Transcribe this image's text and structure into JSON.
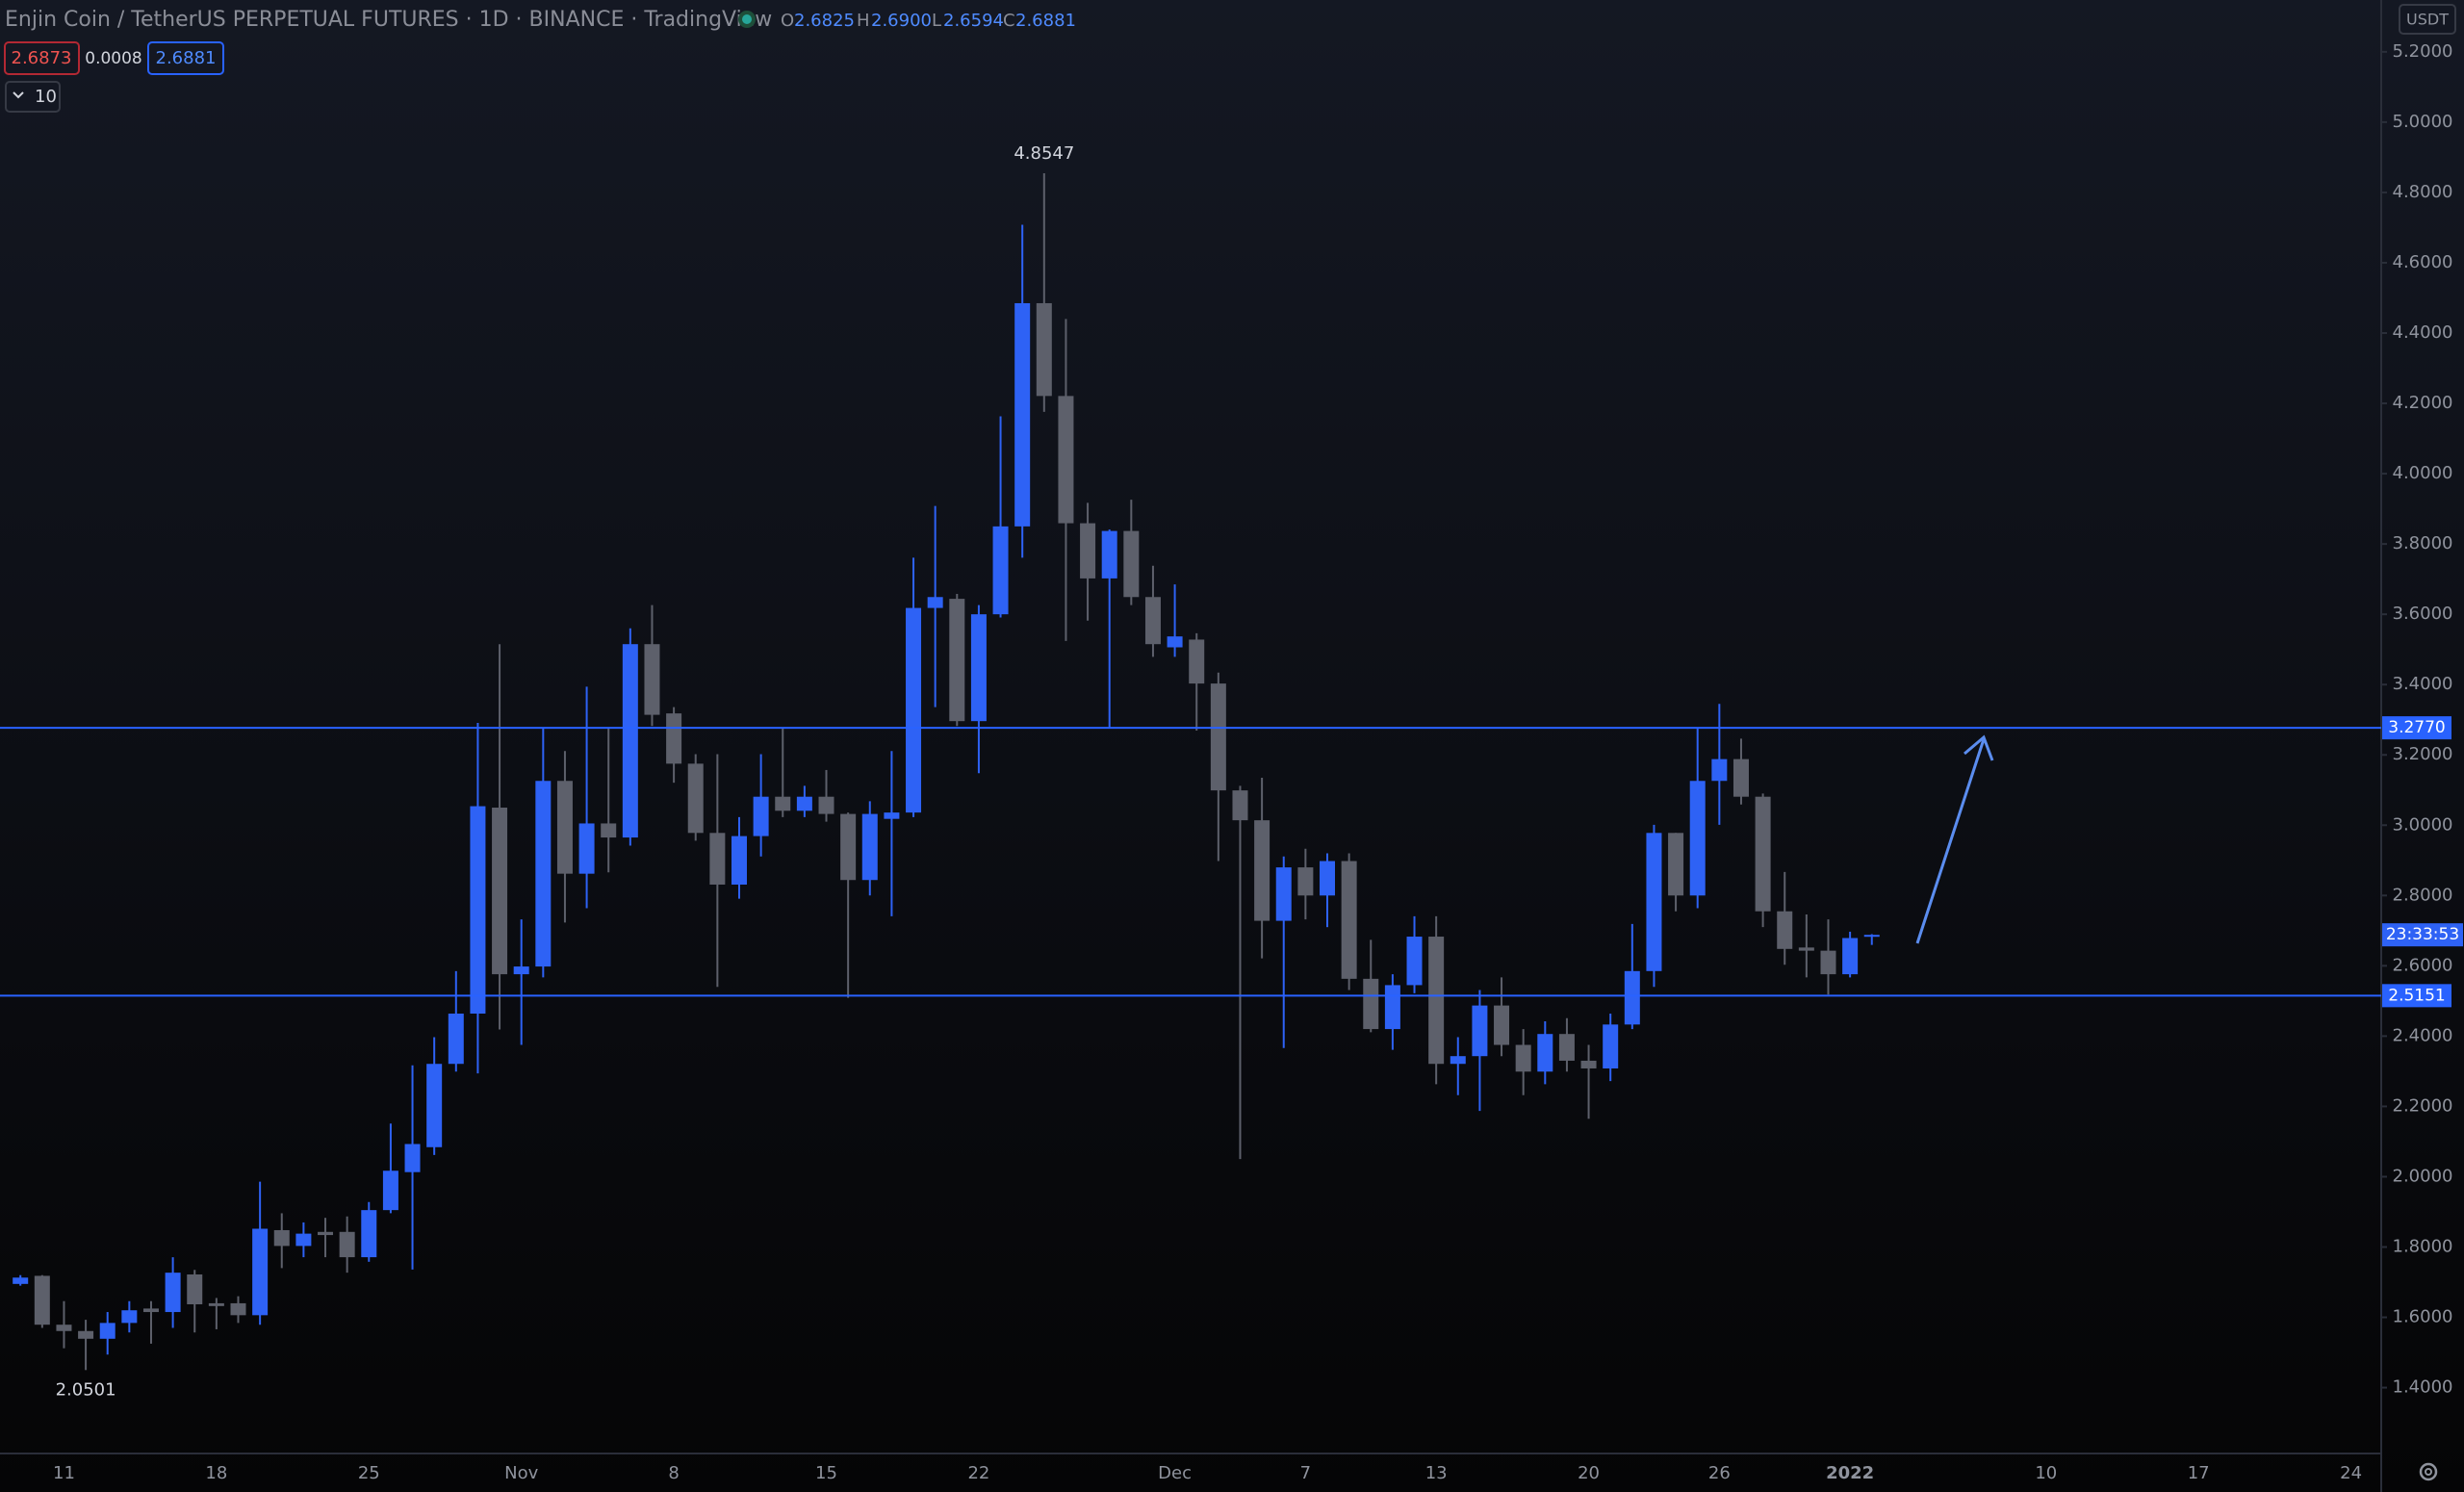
{
  "chart_data": {
    "type": "candlestick",
    "title": "Enjin Coin / TetherUS PERPETUAL FUTURES · 1D · BINANCE · TradingView",
    "ohlc_legend": [
      {
        "key": "O",
        "value": "2.6825"
      },
      {
        "key": "H",
        "value": "2.6900"
      },
      {
        "key": "L",
        "value": "2.6594"
      },
      {
        "key": "C",
        "value": "2.6881"
      }
    ],
    "quote": {
      "sell": "2.6873",
      "spread": "0.0008",
      "buy": "2.6881"
    },
    "indicator_count": "10",
    "currency": "USDT",
    "countdown": "23:33:53",
    "high_label": "4.8547",
    "low_label": "2.0501",
    "up_color": "#2e62f5",
    "down_color": "#5d606b",
    "categories": [
      null,
      null,
      "11",
      null,
      null,
      null,
      null,
      null,
      null,
      "18",
      null,
      null,
      null,
      null,
      null,
      null,
      "25",
      null,
      null,
      null,
      null,
      null,
      null,
      "Nov",
      null,
      null,
      null,
      null,
      null,
      null,
      "8",
      null,
      null,
      null,
      null,
      null,
      null,
      "15",
      null,
      null,
      null,
      null,
      null,
      null,
      "22",
      null,
      null,
      null,
      null,
      null,
      null,
      null,
      null,
      "Dec",
      null,
      null,
      null,
      null,
      null,
      "7",
      null,
      null,
      null,
      null,
      null,
      "13",
      null,
      null,
      null,
      null,
      null,
      null,
      "20",
      null,
      null,
      null,
      null,
      null,
      "26",
      null,
      null,
      null,
      null,
      null,
      "2022",
      null,
      null,
      null,
      null,
      null,
      null,
      null,
      null,
      "10",
      null,
      null,
      null,
      null,
      null,
      null,
      "17",
      null,
      null,
      null,
      null,
      null,
      null,
      "24"
    ],
    "open": [
      1.695,
      1.718,
      1.579,
      1.561,
      1.539,
      1.584,
      1.625,
      1.615,
      1.722,
      1.64,
      1.64,
      1.606,
      1.848,
      1.803,
      1.843,
      1.843,
      1.771,
      1.905,
      2.013,
      2.084,
      2.321,
      2.464,
      3.05,
      2.576,
      2.598,
      3.126,
      2.862,
      3.005,
      2.965,
      3.515,
      3.318,
      3.175,
      2.978,
      2.831,
      2.969,
      3.081,
      3.041,
      3.081,
      3.032,
      2.844,
      3.018,
      3.036,
      3.618,
      3.644,
      3.296,
      3.6,
      3.85,
      4.485,
      4.221,
      3.859,
      3.702,
      3.837,
      3.649,
      3.506,
      3.528,
      3.403,
      3.099,
      3.014,
      2.728,
      2.88,
      2.8,
      2.898,
      2.563,
      2.42,
      2.545,
      2.683,
      2.321,
      2.343,
      2.487,
      2.375,
      2.299,
      2.406,
      2.33,
      2.308,
      2.433,
      2.585,
      2.978,
      2.8,
      3.126,
      3.188,
      3.081,
      2.755,
      2.652,
      2.643,
      2.576,
      2.6825,
      null,
      null,
      null,
      null,
      null,
      null,
      null,
      null,
      null,
      null,
      null,
      null,
      null,
      null,
      null,
      null,
      null,
      null,
      null,
      null,
      null,
      null
    ],
    "high": [
      1.72,
      1.72,
      1.646,
      1.593,
      1.615,
      1.646,
      1.646,
      1.771,
      1.735,
      1.655,
      1.66,
      1.986,
      1.896,
      1.87,
      1.883,
      1.887,
      1.928,
      2.151,
      2.317,
      2.397,
      2.585,
      3.291,
      3.515,
      2.732,
      3.277,
      3.211,
      3.394,
      3.277,
      3.56,
      3.626,
      3.336,
      3.202,
      3.202,
      3.023,
      3.202,
      3.277,
      3.112,
      3.157,
      3.036,
      3.068,
      3.211,
      3.761,
      3.908,
      3.658,
      3.626,
      4.163,
      4.708,
      4.8547,
      4.44,
      3.917,
      3.841,
      3.926,
      3.738,
      3.685,
      3.546,
      3.434,
      3.112,
      3.135,
      2.911,
      2.933,
      2.92,
      2.92,
      2.674,
      2.576,
      2.741,
      2.741,
      2.397,
      2.531,
      2.567,
      2.42,
      2.442,
      2.451,
      2.375,
      2.464,
      2.719,
      3.001,
      2.978,
      3.278,
      3.345,
      3.246,
      3.09,
      2.867,
      2.746,
      2.732,
      2.697,
      2.69,
      null,
      null,
      null,
      null,
      null,
      null,
      null,
      null,
      null,
      null,
      null,
      null,
      null,
      null,
      null,
      null,
      null,
      null,
      null,
      null,
      null,
      null
    ],
    "low": [
      1.69,
      1.57,
      1.512,
      1.45,
      1.494,
      1.557,
      1.525,
      1.57,
      1.557,
      1.566,
      1.584,
      1.579,
      1.74,
      1.771,
      1.771,
      1.727,
      1.758,
      1.896,
      1.736,
      2.062,
      2.299,
      2.294,
      2.419,
      2.375,
      2.567,
      2.723,
      2.764,
      2.866,
      2.942,
      3.282,
      3.121,
      2.956,
      2.54,
      2.791,
      2.911,
      3.023,
      3.023,
      3.01,
      2.509,
      2.8,
      2.741,
      3.023,
      3.336,
      3.282,
      3.148,
      3.591,
      3.761,
      4.176,
      3.524,
      3.582,
      3.278,
      3.626,
      3.479,
      3.479,
      3.269,
      2.898,
      2.0501,
      2.621,
      2.366,
      2.732,
      2.71,
      2.531,
      2.411,
      2.361,
      2.522,
      2.263,
      2.232,
      2.187,
      2.343,
      2.232,
      2.263,
      2.299,
      2.165,
      2.272,
      2.42,
      2.54,
      2.755,
      2.764,
      3.001,
      3.059,
      2.71,
      2.603,
      2.567,
      2.518,
      2.567,
      2.6594,
      null,
      null,
      null,
      null,
      null,
      null,
      null,
      null,
      null,
      null,
      null,
      null,
      null,
      null,
      null,
      null,
      null,
      null,
      null,
      null,
      null,
      null
    ],
    "close": [
      1.713,
      1.579,
      1.561,
      1.539,
      1.584,
      1.62,
      1.615,
      1.727,
      1.637,
      1.632,
      1.606,
      1.852,
      1.803,
      1.838,
      1.834,
      1.771,
      1.905,
      2.017,
      2.093,
      2.321,
      2.464,
      3.054,
      2.576,
      2.598,
      3.126,
      2.862,
      3.005,
      2.965,
      3.515,
      3.314,
      3.175,
      2.978,
      2.831,
      2.969,
      3.081,
      3.041,
      3.081,
      3.032,
      2.844,
      3.032,
      3.036,
      3.618,
      3.649,
      3.296,
      3.6,
      3.85,
      4.485,
      4.221,
      3.859,
      3.702,
      3.837,
      3.649,
      3.515,
      3.537,
      3.403,
      3.099,
      3.014,
      2.728,
      2.88,
      2.8,
      2.898,
      2.563,
      2.42,
      2.545,
      2.683,
      2.321,
      2.343,
      2.487,
      2.375,
      2.299,
      2.406,
      2.33,
      2.308,
      2.433,
      2.585,
      2.978,
      2.8,
      3.126,
      3.188,
      3.081,
      2.755,
      2.648,
      2.643,
      2.576,
      2.679,
      2.6881,
      null,
      null,
      null,
      null,
      null,
      null,
      null,
      null,
      null,
      null,
      null,
      null,
      null,
      null,
      null,
      null,
      null,
      null,
      null,
      null,
      null,
      null
    ],
    "ylim": [
      1.2126,
      5.3475
    ],
    "yticks": [
      {
        "value": 1.4,
        "label": "1.4000"
      },
      {
        "value": 1.6,
        "label": "1.6000"
      },
      {
        "value": 1.8,
        "label": "1.8000"
      },
      {
        "value": 2,
        "label": "2.0000"
      },
      {
        "value": 2.2,
        "label": "2.2000"
      },
      {
        "value": 2.4,
        "label": "2.4000"
      },
      {
        "value": 2.6,
        "label": "2.6000"
      },
      {
        "value": 2.8,
        "label": "2.8000"
      },
      {
        "value": 3,
        "label": "3.0000"
      },
      {
        "value": 3.2,
        "label": "3.2000"
      },
      {
        "value": 3.4,
        "label": "3.4000"
      },
      {
        "value": 3.6,
        "label": "3.6000"
      },
      {
        "value": 3.8,
        "label": "3.8000"
      },
      {
        "value": 4,
        "label": "4.0000"
      },
      {
        "value": 4.2,
        "label": "4.2000"
      },
      {
        "value": 4.4,
        "label": "4.4000"
      },
      {
        "value": 4.6,
        "label": "4.6000"
      },
      {
        "value": 4.8,
        "label": "4.8000"
      },
      {
        "value": 5,
        "label": "5.0000"
      },
      {
        "value": 5.2,
        "label": "5.2000"
      }
    ],
    "hlines": [
      {
        "value": 3.277,
        "label": "3.2770",
        "color": "#2962ff"
      },
      {
        "value": 2.5151,
        "label": "2.5151",
        "color": "#2962ff"
      }
    ],
    "grid": false
  }
}
